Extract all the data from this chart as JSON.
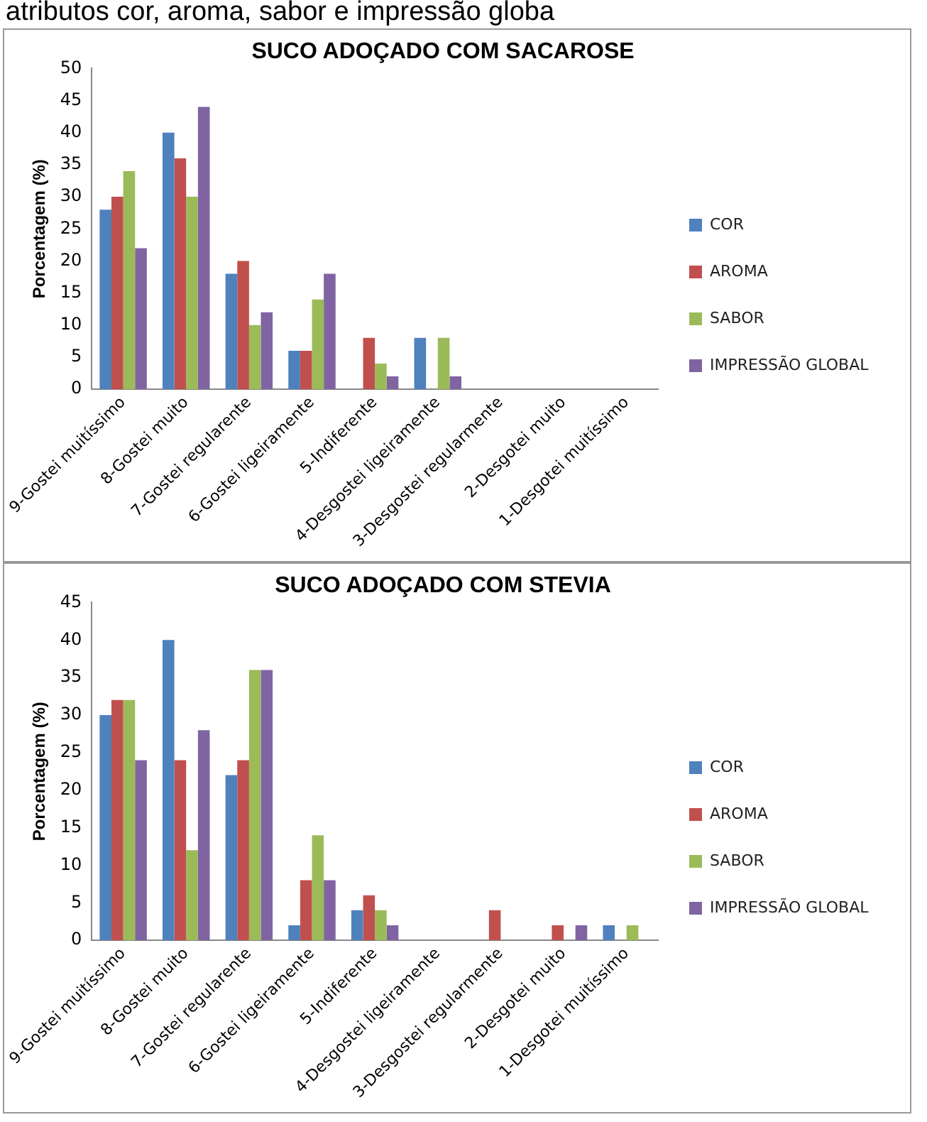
{
  "chart_data": [
    {
      "type": "bar",
      "title": "SUCO ADOÇADO COM SACAROSE",
      "ylabel": "Porcentagem (%)",
      "annotations": [
        "atributos cor, aroma, sabor e impressão globa"
      ],
      "categories": [
        "9-Gostei muitíssimo",
        "8-Gostei muito",
        "7-Gostei regularente",
        "6-Gostei ligeiramente",
        "5-Indiferente",
        "4-Desgostei ligeiramente",
        "3-Desgostei regularmente",
        "2-Desgotei muito",
        "1-Desgotei muitíssimo"
      ],
      "series": [
        {
          "name": "COR",
          "color": "#4f81bd",
          "values": [
            28,
            40,
            18,
            6,
            0,
            8,
            0,
            0,
            0
          ]
        },
        {
          "name": "AROMA",
          "color": "#c0504d",
          "values": [
            30,
            36,
            20,
            6,
            8,
            0,
            0,
            0,
            0
          ]
        },
        {
          "name": "SABOR",
          "color": "#9bbb59",
          "values": [
            34,
            30,
            10,
            14,
            4,
            8,
            0,
            0,
            0
          ]
        },
        {
          "name": "IMPRESSÃO GLOBAL",
          "color": "#8064a2",
          "values": [
            22,
            44,
            12,
            18,
            2,
            2,
            0,
            0,
            0
          ]
        }
      ],
      "ylim": [
        0,
        50
      ],
      "yticks": [
        0,
        5,
        10,
        15,
        20,
        25,
        30,
        35,
        40,
        45,
        50
      ],
      "grid": false,
      "legend": "right"
    },
    {
      "type": "bar",
      "title": "SUCO ADOÇADO COM STEVIA",
      "ylabel": "Porcentagem (%)",
      "categories": [
        "9-Gostei muitíssimo",
        "8-Gostei muito",
        "7-Gostei regularente",
        "6-Gostei ligeiramente",
        "5-Indiferente",
        "4-Desgostei ligeiramente",
        "3-Desgostei regularmente",
        "2-Desgotei muito",
        "1-Desgotei muitíssimo"
      ],
      "series": [
        {
          "name": "COR",
          "color": "#4f81bd",
          "values": [
            30,
            40,
            22,
            2,
            4,
            0,
            0,
            0,
            2
          ]
        },
        {
          "name": "AROMA",
          "color": "#c0504d",
          "values": [
            32,
            24,
            24,
            8,
            6,
            0,
            4,
            2,
            0
          ]
        },
        {
          "name": "SABOR",
          "color": "#9bbb59",
          "values": [
            32,
            12,
            36,
            14,
            4,
            0,
            0,
            0,
            2
          ]
        },
        {
          "name": "IMPRESSÃO GLOBAL",
          "color": "#8064a2",
          "values": [
            24,
            28,
            36,
            8,
            2,
            0,
            0,
            2,
            0
          ]
        }
      ],
      "ylim": [
        0,
        45
      ],
      "yticks": [
        0,
        5,
        10,
        15,
        20,
        25,
        30,
        35,
        40,
        45
      ],
      "grid": false,
      "legend": "right"
    }
  ]
}
